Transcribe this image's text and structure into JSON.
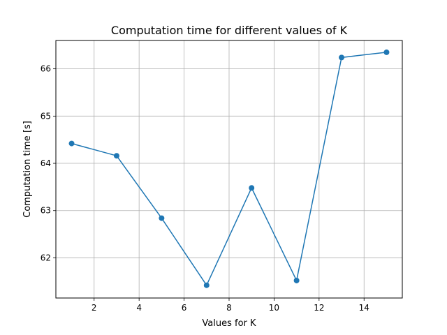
{
  "chart_data": {
    "type": "line",
    "title": "Computation time for different values of K",
    "xlabel": "Values for K",
    "ylabel": "Computation time [s]",
    "x": [
      1,
      3,
      5,
      7,
      9,
      11,
      13,
      15
    ],
    "series": [
      {
        "values": [
          64.42,
          64.16,
          62.84,
          61.42,
          63.48,
          61.52,
          66.24,
          66.35
        ],
        "color": "#1f77b4",
        "marker": "circle"
      }
    ],
    "xlim": [
      0.3,
      15.7
    ],
    "ylim": [
      61.15,
      66.6
    ],
    "xticks": [
      2,
      4,
      6,
      8,
      10,
      12,
      14
    ],
    "yticks": [
      62,
      63,
      64,
      65,
      66
    ],
    "grid": true
  }
}
